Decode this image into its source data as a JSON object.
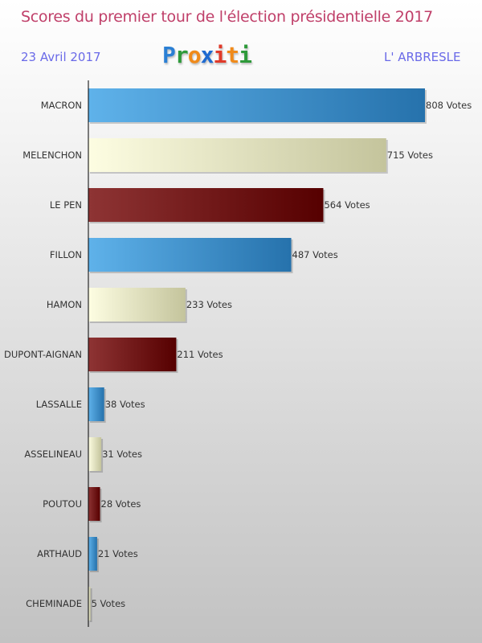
{
  "header": {
    "title": "Scores du premier tour de l'élection présidentielle 2017",
    "date": "23 Avril 2017",
    "place": "L' ARBRESLE",
    "logo": "Proxiti"
  },
  "colors": {
    "blue": [
      "#5fb2ea",
      "#2672ac"
    ],
    "cream": [
      "#fdfde2",
      "#c4c49c"
    ],
    "maroon": [
      "#8e3434",
      "#560000"
    ]
  },
  "chart_data": {
    "type": "bar",
    "orientation": "horizontal",
    "title": "Scores du premier tour de l'élection présidentielle 2017",
    "categories": [
      "MACRON",
      "MELENCHON",
      "LE PEN",
      "FILLON",
      "HAMON",
      "DUPONT-AIGNAN",
      "LASSALLE",
      "ASSELINEAU",
      "POUTOU",
      "ARTHAUD",
      "CHEMINADE"
    ],
    "values": [
      808,
      715,
      564,
      487,
      233,
      211,
      38,
      31,
      28,
      21,
      5
    ],
    "labels": [
      "808 Votes",
      "715 Votes",
      "564 Votes",
      "487 Votes",
      "233 Votes",
      "211 Votes",
      "38 Votes",
      "31 Votes",
      "28 Votes",
      "21 Votes",
      "5 Votes"
    ],
    "bar_colors": [
      "blue",
      "cream",
      "maroon",
      "blue",
      "cream",
      "maroon",
      "blue",
      "cream",
      "maroon",
      "blue",
      "cream"
    ],
    "xlim": [
      0,
      808
    ]
  }
}
